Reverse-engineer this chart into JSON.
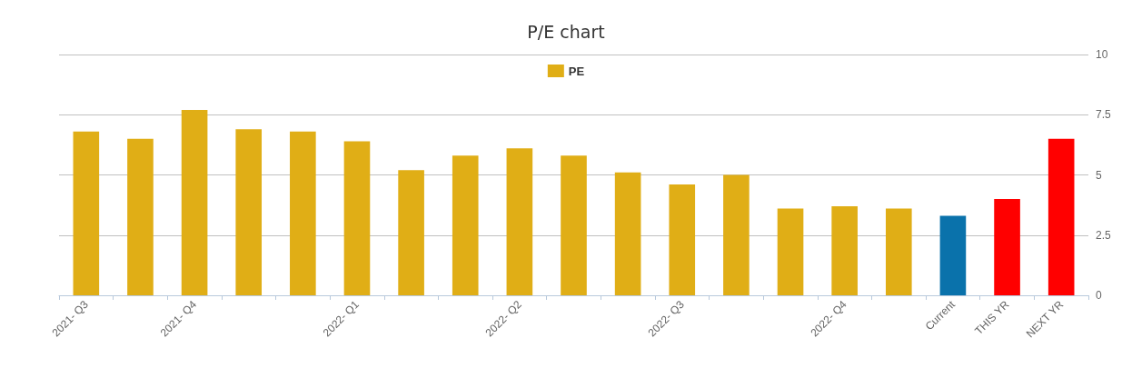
{
  "chart_data": {
    "type": "bar",
    "title": "P/E chart",
    "categories": [
      "2021- Q3",
      null,
      "2021- Q4",
      null,
      null,
      "2022- Q1",
      null,
      null,
      "2022- Q2",
      null,
      null,
      "2022- Q3",
      null,
      null,
      "2022- Q4",
      null,
      "Current",
      "THIS YR",
      "NEXT YR"
    ],
    "series": [
      {
        "name": "PE",
        "color": "#e0ae16",
        "values": [
          6.8,
          6.5,
          7.7,
          6.9,
          6.8,
          6.4,
          5.2,
          5.8,
          6.1,
          5.8,
          5.1,
          4.6,
          5.0,
          3.6,
          3.7,
          3.6,
          3.3,
          4.0,
          6.5
        ],
        "colors": [
          "#e0ae16",
          "#e0ae16",
          "#e0ae16",
          "#e0ae16",
          "#e0ae16",
          "#e0ae16",
          "#e0ae16",
          "#e0ae16",
          "#e0ae16",
          "#e0ae16",
          "#e0ae16",
          "#e0ae16",
          "#e0ae16",
          "#e0ae16",
          "#e0ae16",
          "#e0ae16",
          "#0a72ab",
          "#ff0000",
          "#ff0000"
        ]
      }
    ],
    "ylim": [
      0,
      10
    ],
    "yticks": [
      0,
      2.5,
      5,
      7.5,
      10
    ],
    "grid": "y",
    "legend": "top"
  }
}
